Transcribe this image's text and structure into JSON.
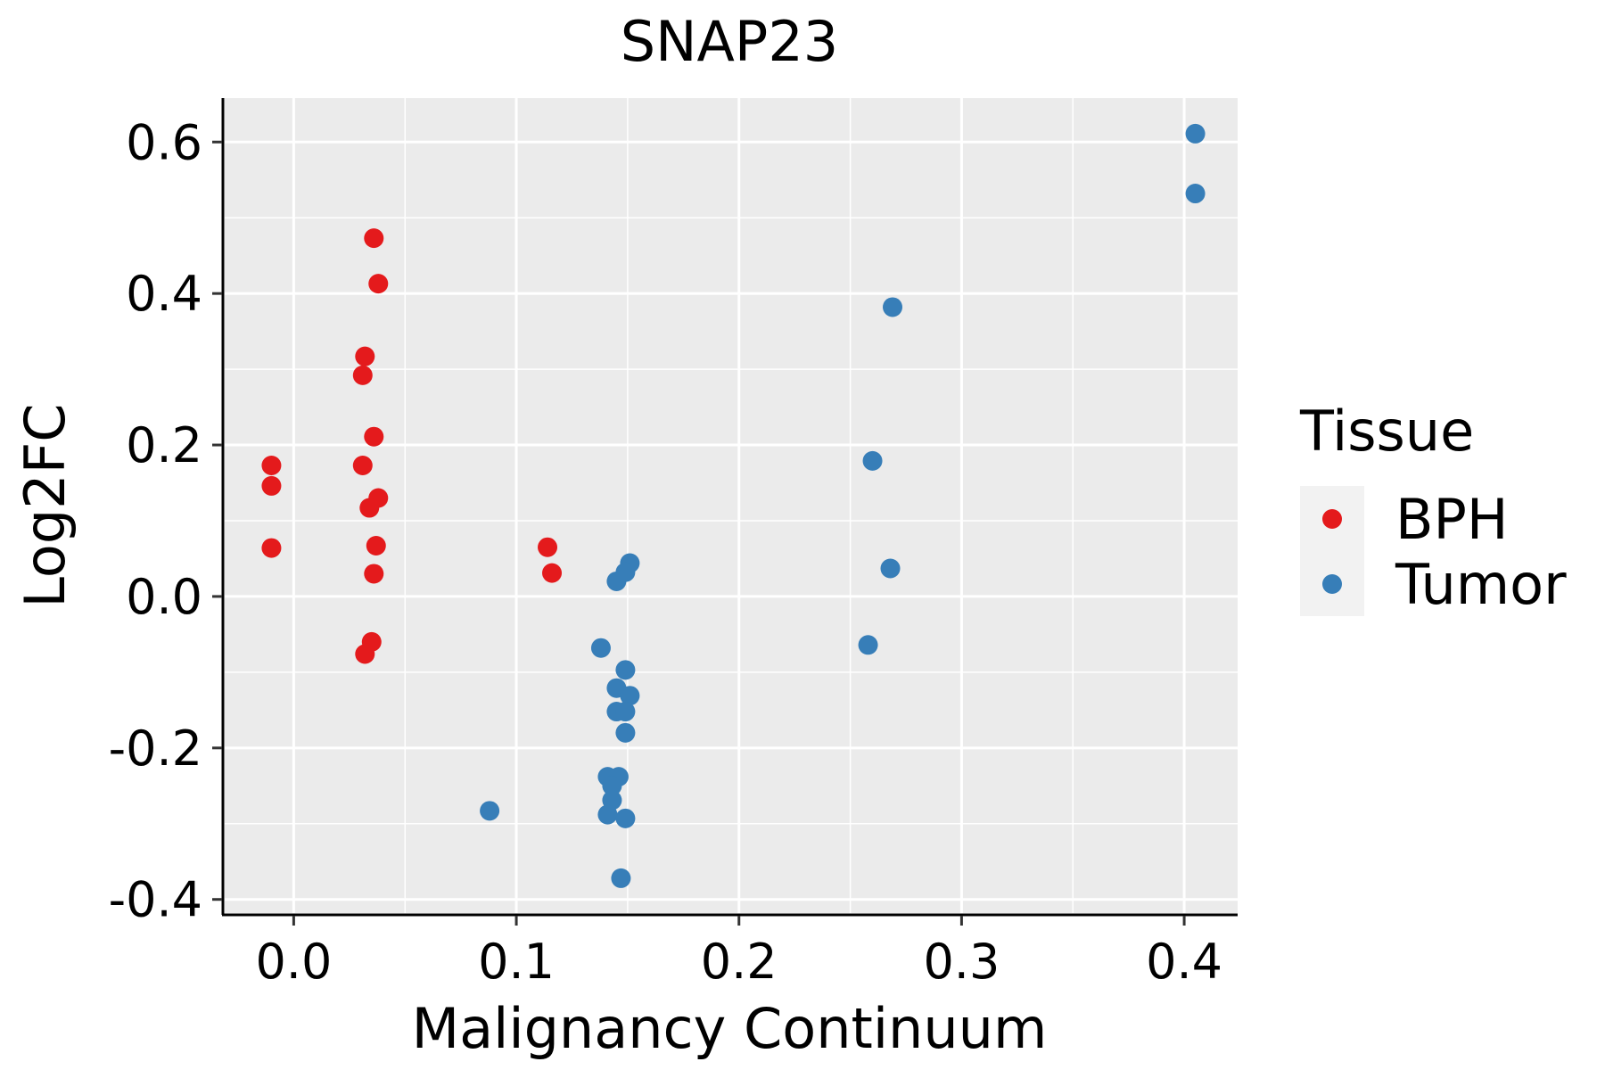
{
  "chart_data": {
    "type": "scatter",
    "title": "SNAP23",
    "xlabel": "Malignancy Continuum",
    "ylabel": "Log2FC",
    "xlim": [
      -0.031,
      0.424
    ],
    "ylim": [
      -0.418,
      0.658
    ],
    "x_ticks": [
      0.0,
      0.1,
      0.2,
      0.3,
      0.4
    ],
    "x_tick_labels": [
      "0.0",
      "0.1",
      "0.2",
      "0.3",
      "0.4"
    ],
    "y_ticks": [
      -0.4,
      -0.2,
      0.0,
      0.2,
      0.4,
      0.6
    ],
    "y_tick_labels": [
      "-0.4",
      "-0.2",
      "0.0",
      "0.2",
      "0.4",
      "0.6"
    ],
    "grid": true,
    "legend": {
      "title": "Tissue",
      "position": "right",
      "entries": [
        "BPH",
        "Tumor"
      ]
    },
    "colors": {
      "BPH": "#E41A1C",
      "Tumor": "#377EB8",
      "panel_bg": "#EBEBEB",
      "grid": "#FFFFFF",
      "legend_key_bg": "#F2F2F2"
    },
    "series": [
      {
        "name": "BPH",
        "points": [
          {
            "x": -0.01,
            "y": 0.173
          },
          {
            "x": -0.01,
            "y": 0.146
          },
          {
            "x": -0.01,
            "y": 0.064
          },
          {
            "x": 0.036,
            "y": 0.473
          },
          {
            "x": 0.038,
            "y": 0.413
          },
          {
            "x": 0.032,
            "y": 0.317
          },
          {
            "x": 0.031,
            "y": 0.292
          },
          {
            "x": 0.036,
            "y": 0.211
          },
          {
            "x": 0.031,
            "y": 0.173
          },
          {
            "x": 0.038,
            "y": 0.13
          },
          {
            "x": 0.034,
            "y": 0.117
          },
          {
            "x": 0.037,
            "y": 0.067
          },
          {
            "x": 0.036,
            "y": 0.03
          },
          {
            "x": 0.035,
            "y": -0.06
          },
          {
            "x": 0.032,
            "y": -0.076
          },
          {
            "x": 0.114,
            "y": 0.065
          },
          {
            "x": 0.116,
            "y": 0.031
          }
        ]
      },
      {
        "name": "Tumor",
        "points": [
          {
            "x": 0.405,
            "y": 0.611
          },
          {
            "x": 0.405,
            "y": 0.532
          },
          {
            "x": 0.269,
            "y": 0.382
          },
          {
            "x": 0.26,
            "y": 0.179
          },
          {
            "x": 0.268,
            "y": 0.037
          },
          {
            "x": 0.258,
            "y": -0.064
          },
          {
            "x": 0.151,
            "y": 0.044
          },
          {
            "x": 0.149,
            "y": 0.032
          },
          {
            "x": 0.145,
            "y": 0.02
          },
          {
            "x": 0.138,
            "y": -0.068
          },
          {
            "x": 0.149,
            "y": -0.097
          },
          {
            "x": 0.145,
            "y": -0.121
          },
          {
            "x": 0.151,
            "y": -0.131
          },
          {
            "x": 0.145,
            "y": -0.152
          },
          {
            "x": 0.149,
            "y": -0.152
          },
          {
            "x": 0.149,
            "y": -0.18
          },
          {
            "x": 0.141,
            "y": -0.238
          },
          {
            "x": 0.146,
            "y": -0.238
          },
          {
            "x": 0.143,
            "y": -0.25
          },
          {
            "x": 0.143,
            "y": -0.269
          },
          {
            "x": 0.141,
            "y": -0.288
          },
          {
            "x": 0.149,
            "y": -0.293
          },
          {
            "x": 0.088,
            "y": -0.283
          },
          {
            "x": 0.147,
            "y": -0.372
          }
        ]
      }
    ]
  }
}
